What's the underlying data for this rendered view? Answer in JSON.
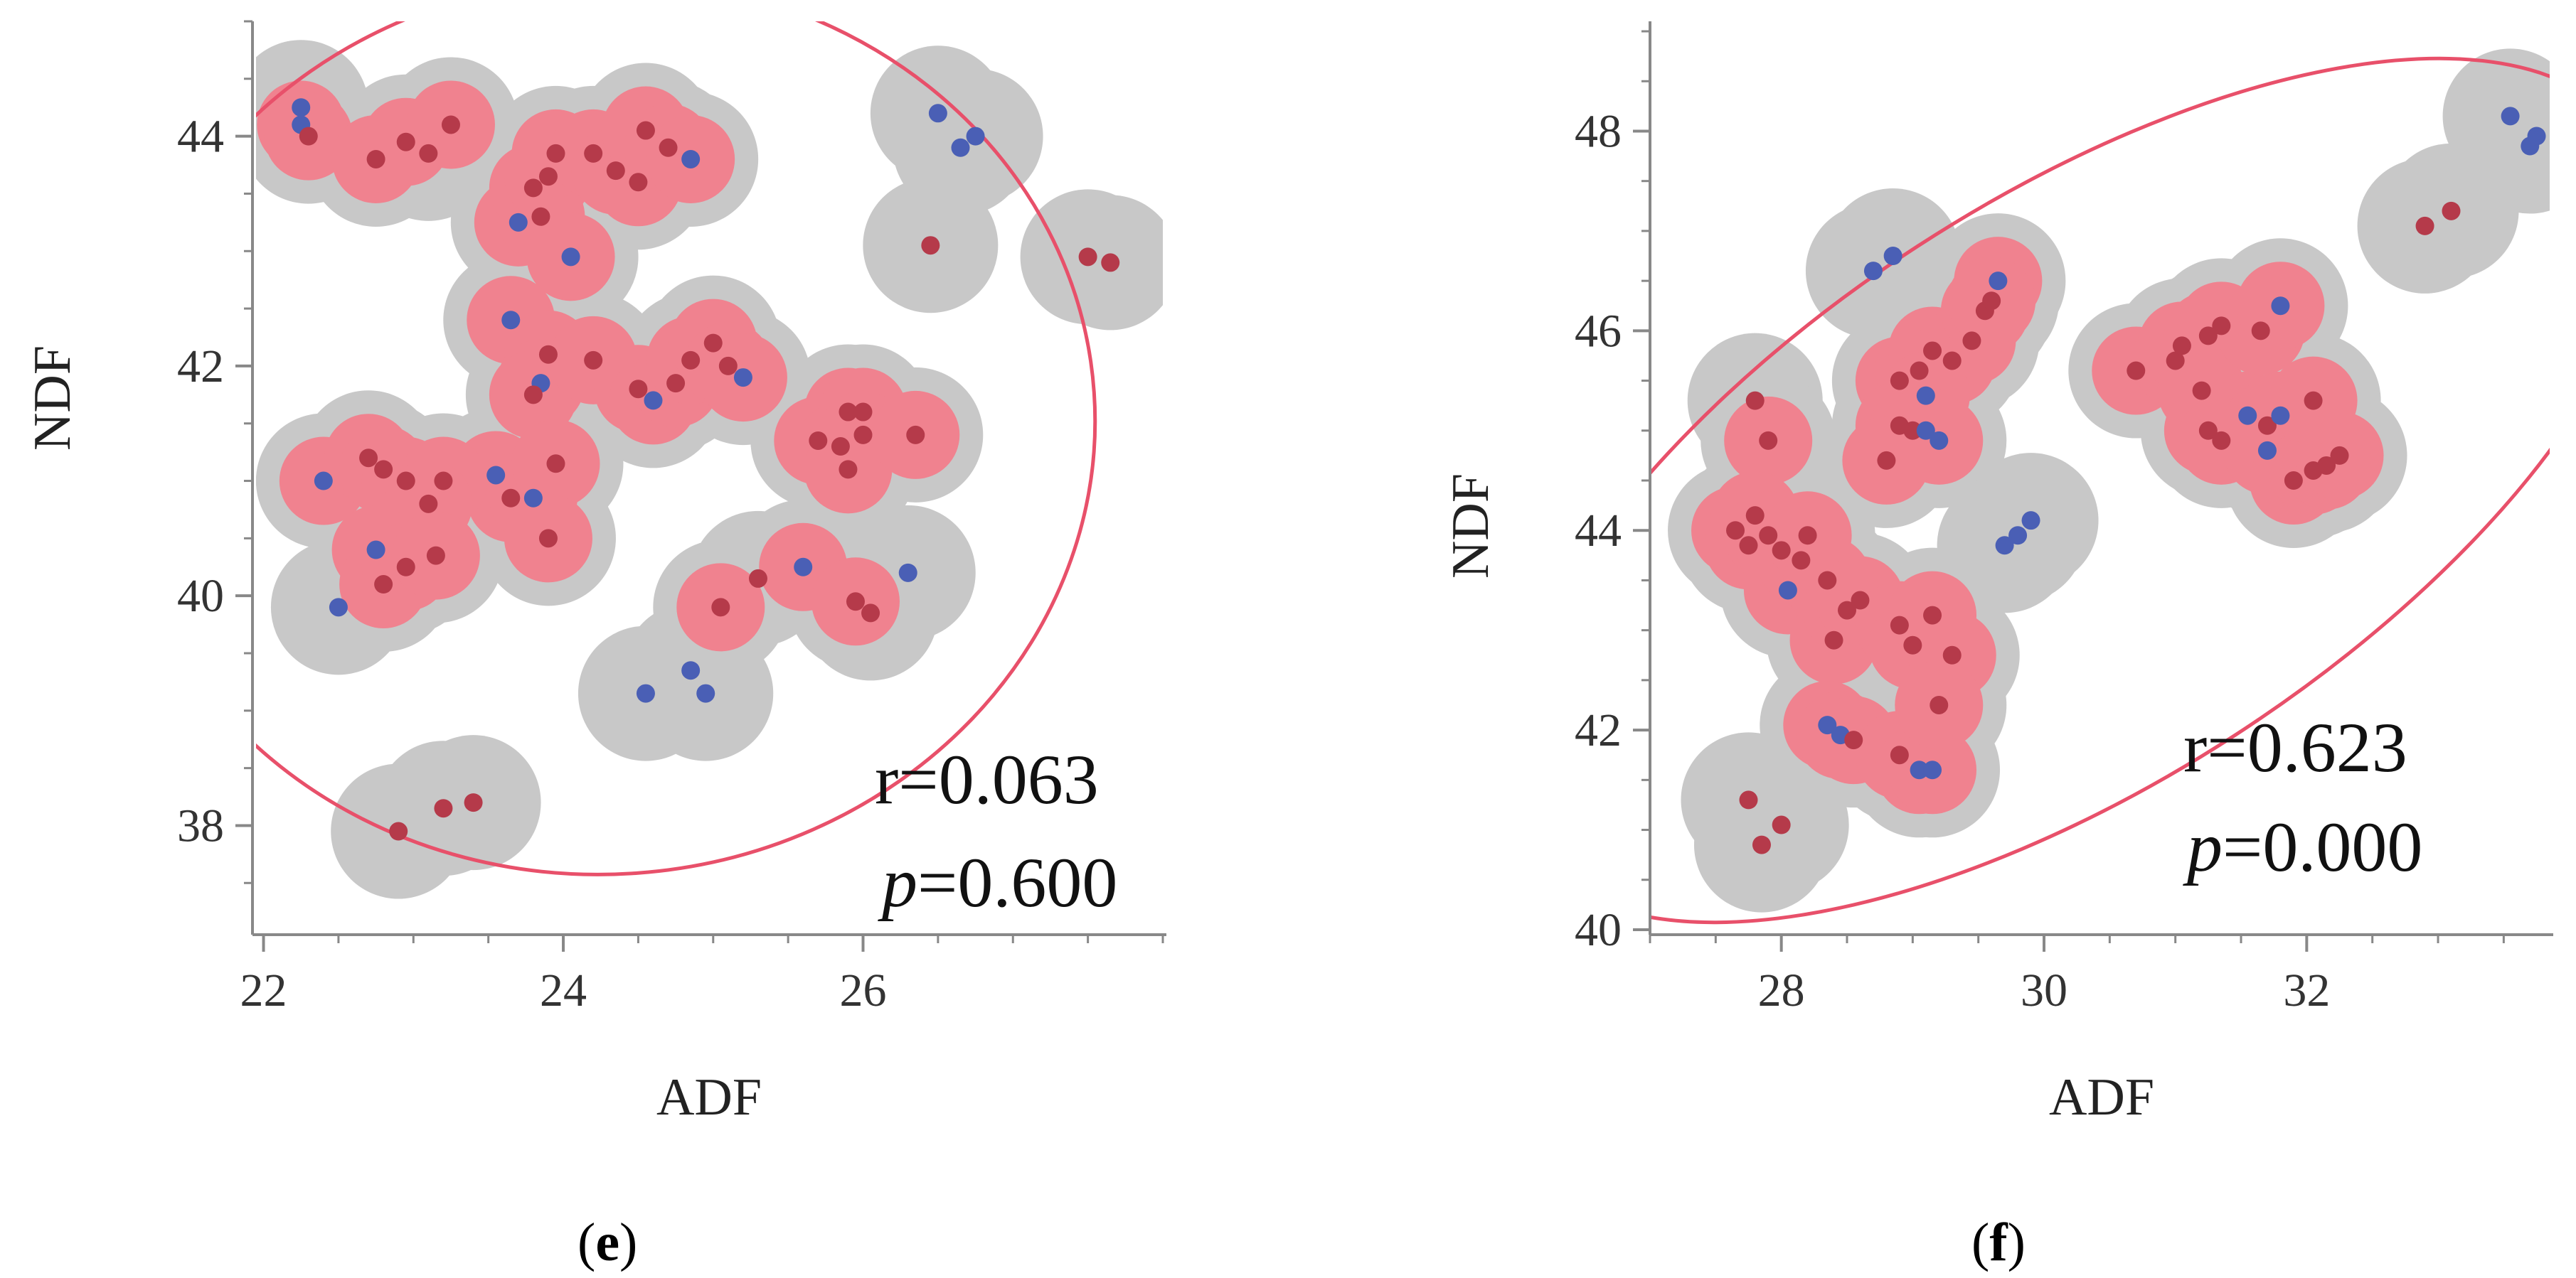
{
  "colors": {
    "density_outer": "#c8c8c8",
    "density_inner": "#f0828f",
    "ellipse": "#e8506a",
    "point_red": "#b53a4a",
    "point_blue": "#4a5fb5",
    "axis": "#888888"
  },
  "chart_data": [
    {
      "type": "scatter",
      "panel": "e",
      "xlabel": "ADF",
      "ylabel": "NDF",
      "xlim": [
        21.95,
        28.0
      ],
      "ylim": [
        37.05,
        45.0
      ],
      "xticks": [
        22,
        24,
        26
      ],
      "yticks": [
        38,
        40,
        42,
        44
      ],
      "r_label": "r=0.063",
      "p_italic": "p",
      "p_value": "=0.600",
      "points": [
        {
          "x": 22.25,
          "y": 44.1,
          "c": "b"
        },
        {
          "x": 22.3,
          "y": 44.0,
          "c": "r"
        },
        {
          "x": 22.25,
          "y": 44.25,
          "c": "b"
        },
        {
          "x": 22.75,
          "y": 43.8,
          "c": "r"
        },
        {
          "x": 22.95,
          "y": 43.95,
          "c": "r"
        },
        {
          "x": 23.1,
          "y": 43.85,
          "c": "r"
        },
        {
          "x": 23.25,
          "y": 44.1,
          "c": "r"
        },
        {
          "x": 23.7,
          "y": 43.25,
          "c": "b"
        },
        {
          "x": 23.85,
          "y": 43.3,
          "c": "r"
        },
        {
          "x": 23.8,
          "y": 43.55,
          "c": "r"
        },
        {
          "x": 23.9,
          "y": 43.65,
          "c": "r"
        },
        {
          "x": 23.95,
          "y": 43.85,
          "c": "r"
        },
        {
          "x": 24.2,
          "y": 43.85,
          "c": "r"
        },
        {
          "x": 24.35,
          "y": 43.7,
          "c": "r"
        },
        {
          "x": 24.5,
          "y": 43.6,
          "c": "r"
        },
        {
          "x": 24.55,
          "y": 44.05,
          "c": "r"
        },
        {
          "x": 24.7,
          "y": 43.9,
          "c": "r"
        },
        {
          "x": 24.85,
          "y": 43.8,
          "c": "b"
        },
        {
          "x": 24.05,
          "y": 42.95,
          "c": "b"
        },
        {
          "x": 23.65,
          "y": 42.4,
          "c": "b"
        },
        {
          "x": 23.9,
          "y": 42.1,
          "c": "r"
        },
        {
          "x": 23.85,
          "y": 41.85,
          "c": "b"
        },
        {
          "x": 23.8,
          "y": 41.75,
          "c": "r"
        },
        {
          "x": 23.55,
          "y": 41.05,
          "c": "b"
        },
        {
          "x": 23.65,
          "y": 40.85,
          "c": "r"
        },
        {
          "x": 23.8,
          "y": 40.85,
          "c": "b"
        },
        {
          "x": 23.95,
          "y": 41.15,
          "c": "r"
        },
        {
          "x": 23.9,
          "y": 40.5,
          "c": "r"
        },
        {
          "x": 22.4,
          "y": 41.0,
          "c": "b"
        },
        {
          "x": 22.5,
          "y": 39.9,
          "c": "b"
        },
        {
          "x": 22.7,
          "y": 41.2,
          "c": "r"
        },
        {
          "x": 22.8,
          "y": 41.1,
          "c": "r"
        },
        {
          "x": 22.95,
          "y": 41.0,
          "c": "r"
        },
        {
          "x": 23.2,
          "y": 41.0,
          "c": "r"
        },
        {
          "x": 23.1,
          "y": 40.8,
          "c": "r"
        },
        {
          "x": 22.75,
          "y": 40.4,
          "c": "b"
        },
        {
          "x": 22.8,
          "y": 40.1,
          "c": "r"
        },
        {
          "x": 22.95,
          "y": 40.25,
          "c": "r"
        },
        {
          "x": 23.15,
          "y": 40.35,
          "c": "r"
        },
        {
          "x": 24.2,
          "y": 42.05,
          "c": "r"
        },
        {
          "x": 24.5,
          "y": 41.8,
          "c": "r"
        },
        {
          "x": 24.6,
          "y": 41.7,
          "c": "b"
        },
        {
          "x": 24.75,
          "y": 41.85,
          "c": "r"
        },
        {
          "x": 24.85,
          "y": 42.05,
          "c": "r"
        },
        {
          "x": 25.0,
          "y": 42.2,
          "c": "r"
        },
        {
          "x": 25.1,
          "y": 42.0,
          "c": "r"
        },
        {
          "x": 25.2,
          "y": 41.9,
          "c": "b"
        },
        {
          "x": 25.7,
          "y": 41.35,
          "c": "r"
        },
        {
          "x": 25.9,
          "y": 41.6,
          "c": "r"
        },
        {
          "x": 26.0,
          "y": 41.6,
          "c": "r"
        },
        {
          "x": 25.85,
          "y": 41.3,
          "c": "r"
        },
        {
          "x": 26.0,
          "y": 41.4,
          "c": "r"
        },
        {
          "x": 25.9,
          "y": 41.1,
          "c": "r"
        },
        {
          "x": 26.35,
          "y": 41.4,
          "c": "r"
        },
        {
          "x": 25.05,
          "y": 39.9,
          "c": "r"
        },
        {
          "x": 25.3,
          "y": 40.15,
          "c": "r"
        },
        {
          "x": 25.6,
          "y": 40.25,
          "c": "b"
        },
        {
          "x": 25.95,
          "y": 39.95,
          "c": "r"
        },
        {
          "x": 26.05,
          "y": 39.85,
          "c": "r"
        },
        {
          "x": 26.3,
          "y": 40.2,
          "c": "b"
        },
        {
          "x": 24.55,
          "y": 39.15,
          "c": "b"
        },
        {
          "x": 24.85,
          "y": 39.35,
          "c": "b"
        },
        {
          "x": 24.95,
          "y": 39.15,
          "c": "b"
        },
        {
          "x": 22.9,
          "y": 37.95,
          "c": "r"
        },
        {
          "x": 23.2,
          "y": 38.15,
          "c": "r"
        },
        {
          "x": 23.4,
          "y": 38.2,
          "c": "r"
        },
        {
          "x": 26.5,
          "y": 44.2,
          "c": "b"
        },
        {
          "x": 26.65,
          "y": 43.9,
          "c": "b"
        },
        {
          "x": 26.75,
          "y": 44.0,
          "c": "b"
        },
        {
          "x": 26.45,
          "y": 43.05,
          "c": "r"
        },
        {
          "x": 27.5,
          "y": 42.95,
          "c": "r"
        },
        {
          "x": 27.65,
          "y": 42.9,
          "c": "r"
        }
      ]
    },
    {
      "type": "scatter",
      "panel": "f",
      "xlabel": "ADF",
      "ylabel": "NDF",
      "xlim": [
        27.0,
        33.85
      ],
      "ylim": [
        39.95,
        49.1
      ],
      "xticks": [
        28,
        30,
        32
      ],
      "yticks": [
        40,
        42,
        44,
        46,
        48
      ],
      "r_label": "r=0.623",
      "p_italic": "p",
      "p_value": "=0.000",
      "points": [
        {
          "x": 33.55,
          "y": 48.15,
          "c": "b"
        },
        {
          "x": 33.7,
          "y": 47.85,
          "c": "b"
        },
        {
          "x": 33.75,
          "y": 47.95,
          "c": "b"
        },
        {
          "x": 32.9,
          "y": 47.05,
          "c": "r"
        },
        {
          "x": 33.1,
          "y": 47.2,
          "c": "r"
        },
        {
          "x": 28.7,
          "y": 46.6,
          "c": "b"
        },
        {
          "x": 28.85,
          "y": 46.75,
          "c": "b"
        },
        {
          "x": 29.65,
          "y": 46.5,
          "c": "b"
        },
        {
          "x": 28.9,
          "y": 45.5,
          "c": "r"
        },
        {
          "x": 29.05,
          "y": 45.6,
          "c": "r"
        },
        {
          "x": 29.15,
          "y": 45.8,
          "c": "r"
        },
        {
          "x": 29.3,
          "y": 45.7,
          "c": "r"
        },
        {
          "x": 29.45,
          "y": 45.9,
          "c": "r"
        },
        {
          "x": 29.55,
          "y": 46.2,
          "c": "r"
        },
        {
          "x": 29.6,
          "y": 46.3,
          "c": "r"
        },
        {
          "x": 29.1,
          "y": 45.35,
          "c": "b"
        },
        {
          "x": 28.9,
          "y": 45.05,
          "c": "r"
        },
        {
          "x": 29.0,
          "y": 45.0,
          "c": "r"
        },
        {
          "x": 29.1,
          "y": 45.0,
          "c": "b"
        },
        {
          "x": 29.2,
          "y": 44.9,
          "c": "b"
        },
        {
          "x": 28.8,
          "y": 44.7,
          "c": "r"
        },
        {
          "x": 29.7,
          "y": 43.85,
          "c": "b"
        },
        {
          "x": 29.8,
          "y": 43.95,
          "c": "b"
        },
        {
          "x": 29.9,
          "y": 44.1,
          "c": "b"
        },
        {
          "x": 27.8,
          "y": 45.3,
          "c": "r"
        },
        {
          "x": 27.9,
          "y": 44.9,
          "c": "r"
        },
        {
          "x": 27.65,
          "y": 44.0,
          "c": "r"
        },
        {
          "x": 27.75,
          "y": 43.85,
          "c": "r"
        },
        {
          "x": 27.8,
          "y": 44.15,
          "c": "r"
        },
        {
          "x": 27.9,
          "y": 43.95,
          "c": "r"
        },
        {
          "x": 28.0,
          "y": 43.8,
          "c": "r"
        },
        {
          "x": 28.05,
          "y": 43.4,
          "c": "b"
        },
        {
          "x": 28.15,
          "y": 43.7,
          "c": "r"
        },
        {
          "x": 28.2,
          "y": 43.95,
          "c": "r"
        },
        {
          "x": 28.35,
          "y": 43.5,
          "c": "r"
        },
        {
          "x": 28.4,
          "y": 42.9,
          "c": "r"
        },
        {
          "x": 28.5,
          "y": 43.2,
          "c": "r"
        },
        {
          "x": 28.6,
          "y": 43.3,
          "c": "r"
        },
        {
          "x": 28.9,
          "y": 43.05,
          "c": "r"
        },
        {
          "x": 29.0,
          "y": 42.85,
          "c": "r"
        },
        {
          "x": 29.15,
          "y": 43.15,
          "c": "r"
        },
        {
          "x": 29.3,
          "y": 42.75,
          "c": "r"
        },
        {
          "x": 28.35,
          "y": 42.05,
          "c": "b"
        },
        {
          "x": 28.45,
          "y": 41.95,
          "c": "b"
        },
        {
          "x": 28.55,
          "y": 41.9,
          "c": "r"
        },
        {
          "x": 28.9,
          "y": 41.75,
          "c": "r"
        },
        {
          "x": 29.05,
          "y": 41.6,
          "c": "b"
        },
        {
          "x": 29.15,
          "y": 41.6,
          "c": "b"
        },
        {
          "x": 29.2,
          "y": 42.25,
          "c": "r"
        },
        {
          "x": 27.75,
          "y": 41.3,
          "c": "r"
        },
        {
          "x": 27.85,
          "y": 40.85,
          "c": "r"
        },
        {
          "x": 28.0,
          "y": 41.05,
          "c": "r"
        },
        {
          "x": 30.7,
          "y": 45.6,
          "c": "r"
        },
        {
          "x": 31.0,
          "y": 45.7,
          "c": "r"
        },
        {
          "x": 31.05,
          "y": 45.85,
          "c": "r"
        },
        {
          "x": 31.25,
          "y": 45.95,
          "c": "r"
        },
        {
          "x": 31.35,
          "y": 46.05,
          "c": "r"
        },
        {
          "x": 31.2,
          "y": 45.4,
          "c": "r"
        },
        {
          "x": 31.25,
          "y": 45.0,
          "c": "r"
        },
        {
          "x": 31.35,
          "y": 44.9,
          "c": "r"
        },
        {
          "x": 31.55,
          "y": 45.15,
          "c": "b"
        },
        {
          "x": 31.7,
          "y": 45.05,
          "c": "r"
        },
        {
          "x": 31.8,
          "y": 45.15,
          "c": "b"
        },
        {
          "x": 31.65,
          "y": 46.0,
          "c": "r"
        },
        {
          "x": 31.8,
          "y": 46.25,
          "c": "b"
        },
        {
          "x": 31.7,
          "y": 44.8,
          "c": "b"
        },
        {
          "x": 31.9,
          "y": 44.5,
          "c": "r"
        },
        {
          "x": 32.05,
          "y": 44.6,
          "c": "r"
        },
        {
          "x": 32.15,
          "y": 44.65,
          "c": "r"
        },
        {
          "x": 32.25,
          "y": 44.75,
          "c": "r"
        },
        {
          "x": 32.05,
          "y": 45.3,
          "c": "r"
        }
      ]
    }
  ],
  "captions": {
    "e": "e",
    "f": "f"
  }
}
